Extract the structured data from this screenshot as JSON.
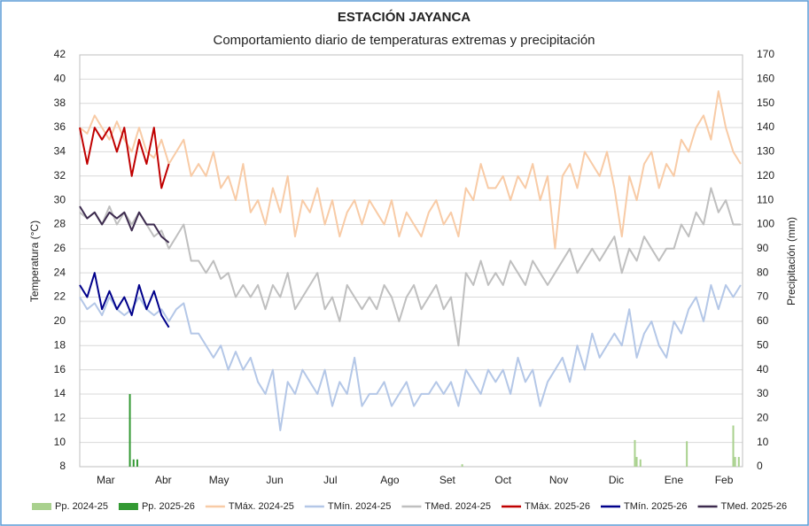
{
  "chart_data": {
    "type": "line",
    "title": "ESTACIÓN JAYANCA",
    "subtitle": "Comportamiento diario de temperaturas extremas y precipitación",
    "y_label": "Temperatura (°C)",
    "y2_label": "Precipitación (mm)",
    "xlim": [
      0,
      357
    ],
    "xticks": [
      {
        "value": 14,
        "label": "Mar"
      },
      {
        "value": 45,
        "label": "Abr"
      },
      {
        "value": 75,
        "label": "May"
      },
      {
        "value": 105,
        "label": "Jun"
      },
      {
        "value": 135,
        "label": "Jul"
      },
      {
        "value": 167,
        "label": "Ago"
      },
      {
        "value": 198,
        "label": "Set"
      },
      {
        "value": 228,
        "label": "Oct"
      },
      {
        "value": 258,
        "label": "Nov"
      },
      {
        "value": 289,
        "label": "Dic"
      },
      {
        "value": 320,
        "label": "Ene"
      },
      {
        "value": 347,
        "label": "Feb"
      }
    ],
    "ylim": [
      8,
      42
    ],
    "yticks": [
      8,
      10,
      12,
      14,
      16,
      18,
      20,
      22,
      24,
      26,
      28,
      30,
      32,
      34,
      36,
      38,
      40,
      42
    ],
    "y2lim": [
      0,
      170
    ],
    "y2ticks": [
      0,
      10,
      20,
      30,
      40,
      50,
      60,
      70,
      80,
      90,
      100,
      110,
      120,
      130,
      140,
      150,
      160,
      170
    ],
    "grid": true,
    "legend": "bottom",
    "x": [
      0,
      4,
      8,
      12,
      16,
      20,
      24,
      28,
      32,
      36,
      40,
      44,
      48,
      52,
      56,
      60,
      64,
      68,
      72,
      76,
      80,
      84,
      88,
      92,
      96,
      100,
      104,
      108,
      112,
      116,
      120,
      124,
      128,
      132,
      136,
      140,
      144,
      148,
      152,
      156,
      160,
      164,
      168,
      172,
      176,
      180,
      184,
      188,
      192,
      196,
      200,
      204,
      208,
      212,
      216,
      220,
      224,
      228,
      232,
      236,
      240,
      244,
      248,
      252,
      256,
      260,
      264,
      268,
      272,
      276,
      280,
      284,
      288,
      292,
      296,
      300,
      304,
      308,
      312,
      316,
      320,
      324,
      328,
      332,
      336,
      340,
      344,
      348,
      352,
      356
    ],
    "series": [
      {
        "name": "Pp. 2024-25",
        "type": "bar",
        "axis": "y2",
        "color": "#a9d18e",
        "x": [
          206,
          299,
          300,
          302,
          327,
          352,
          353,
          355
        ],
        "values": [
          1,
          11,
          4,
          3,
          10.5,
          17,
          4,
          4
        ]
      },
      {
        "name": "Pp. 2025-26",
        "type": "bar",
        "axis": "y2",
        "color": "#339933",
        "x": [
          27,
          29,
          31
        ],
        "values": [
          30,
          3,
          3
        ]
      },
      {
        "name": "TMáx. 2024-25",
        "type": "line",
        "color": "#f8cba6",
        "values": [
          36,
          35.5,
          37,
          36,
          35,
          36.5,
          35,
          34,
          36,
          34,
          33.5,
          35,
          33,
          34,
          35,
          32,
          33,
          32,
          34,
          31,
          32,
          30,
          33,
          29,
          30,
          28,
          31,
          29,
          32,
          27,
          30,
          29,
          31,
          28,
          30,
          27,
          29,
          30,
          28,
          30,
          29,
          28,
          30,
          27,
          29,
          28,
          27,
          29,
          30,
          28,
          29,
          27,
          31,
          30,
          33,
          31,
          31,
          32,
          30,
          32,
          31,
          33,
          30,
          32,
          26,
          32,
          33,
          31,
          34,
          33,
          32,
          34,
          31,
          27,
          32,
          30,
          33,
          34,
          31,
          33,
          32,
          35,
          34,
          36,
          37,
          35,
          39,
          36,
          34,
          33
        ]
      },
      {
        "name": "TMín. 2024-25",
        "type": "line",
        "color": "#b4c7e7",
        "values": [
          22,
          21,
          21.5,
          20.5,
          22,
          21,
          20.5,
          21,
          22,
          21,
          20.5,
          21,
          20,
          21,
          21.5,
          19,
          19,
          18,
          17,
          18,
          16,
          17.5,
          16,
          17,
          15,
          14,
          16,
          11,
          15,
          14,
          16,
          15,
          14,
          16,
          13,
          15,
          14,
          17,
          13,
          14,
          14,
          15,
          13,
          14,
          15,
          13,
          14,
          14,
          15,
          14,
          15,
          13,
          16,
          15,
          14,
          16,
          15,
          16,
          14,
          17,
          15,
          16,
          13,
          15,
          16,
          17,
          15,
          18,
          16,
          19,
          17,
          18,
          19,
          18,
          21,
          17,
          19,
          20,
          18,
          17,
          20,
          19,
          21,
          22,
          20,
          23,
          21,
          23,
          22,
          23
        ]
      },
      {
        "name": "TMed. 2024-25",
        "type": "line",
        "color": "#bfbfbf",
        "values": [
          29,
          28.5,
          29,
          28,
          29.5,
          28,
          29,
          28,
          29,
          28,
          27,
          27.5,
          26,
          27,
          28,
          25,
          25,
          24,
          25,
          23.5,
          24,
          22,
          23,
          22,
          23,
          21,
          23,
          22,
          24,
          21,
          22,
          23,
          24,
          21,
          22,
          20,
          23,
          22,
          21,
          22,
          21,
          23,
          22,
          20,
          22,
          23,
          21,
          22,
          23,
          21,
          22,
          18,
          24,
          23,
          25,
          23,
          24,
          23,
          25,
          24,
          23,
          25,
          24,
          23,
          24,
          25,
          26,
          24,
          25,
          26,
          25,
          26,
          27,
          24,
          26,
          25,
          27,
          26,
          25,
          26,
          26,
          28,
          27,
          29,
          28,
          31,
          29,
          30,
          28,
          28
        ]
      },
      {
        "name": "TMáx. 2025-26",
        "type": "line",
        "color": "#c00000",
        "x": [
          0,
          4,
          8,
          12,
          16,
          20,
          24,
          28,
          32,
          36,
          40,
          44,
          48
        ],
        "values": [
          36,
          33,
          36,
          35,
          36,
          34,
          36,
          32,
          35,
          33,
          36,
          31,
          33
        ]
      },
      {
        "name": "TMín. 2025-26",
        "type": "line",
        "color": "#00008b",
        "x": [
          0,
          4,
          8,
          12,
          16,
          20,
          24,
          28,
          32,
          36,
          40,
          44,
          48
        ],
        "values": [
          23,
          22,
          24,
          21,
          22.5,
          21,
          22,
          20.5,
          23,
          21,
          22.5,
          20.5,
          19.5
        ]
      },
      {
        "name": "TMed. 2025-26",
        "type": "line",
        "color": "#3d2b4f",
        "x": [
          0,
          4,
          8,
          12,
          16,
          20,
          24,
          28,
          32,
          36,
          40,
          44,
          48
        ],
        "values": [
          29.5,
          28.5,
          29,
          28,
          29,
          28.5,
          29,
          27.5,
          29,
          28,
          28,
          27,
          26.5
        ]
      }
    ]
  }
}
